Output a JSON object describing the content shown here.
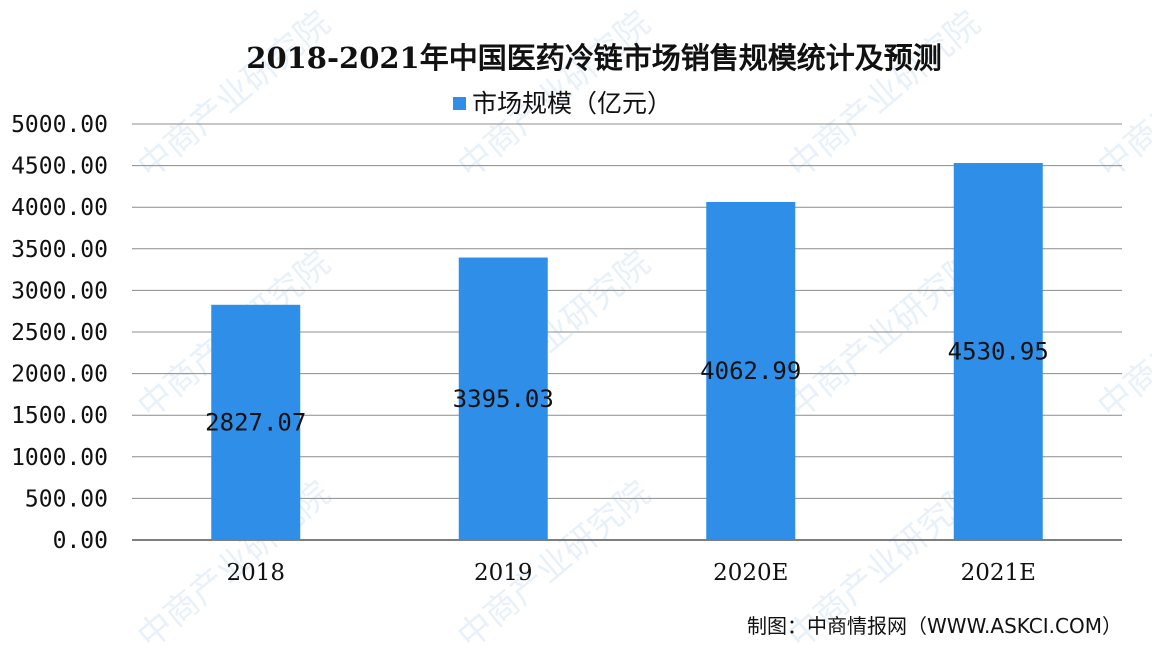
{
  "chart_data": {
    "type": "bar",
    "title": "2018-2021年中国医药冷链市场销售规模统计及预测",
    "categories": [
      "2018",
      "2019",
      "2020E",
      "2021E"
    ],
    "series": [
      {
        "name": "市场规模（亿元）",
        "values": [
          2827.07,
          3395.03,
          4062.99,
          4530.95
        ],
        "color": "#2f8fe8"
      }
    ],
    "data_labels": [
      "2827.07",
      "3395.03",
      "4062.99",
      "4530.95"
    ],
    "ylim": [
      0,
      5000
    ],
    "yticks": [
      0,
      500,
      1000,
      1500,
      2000,
      2500,
      3000,
      3500,
      4000,
      4500,
      5000
    ],
    "ytick_labels": [
      "0.00",
      "500.00",
      "1000.00",
      "1500.00",
      "2000.00",
      "2500.00",
      "3000.00",
      "3500.00",
      "4000.00",
      "4500.00",
      "5000.00"
    ],
    "xlabel": "",
    "ylabel": "",
    "grid": true,
    "legend_position": "top-center"
  },
  "source": "制图：中商情报网（WWW.ASKCI.COM）",
  "watermark": "中商产业研究院",
  "colors": {
    "bar": "#2f8fe8",
    "grid": "#8c8c8c",
    "watermark": "#4a90d9"
  }
}
